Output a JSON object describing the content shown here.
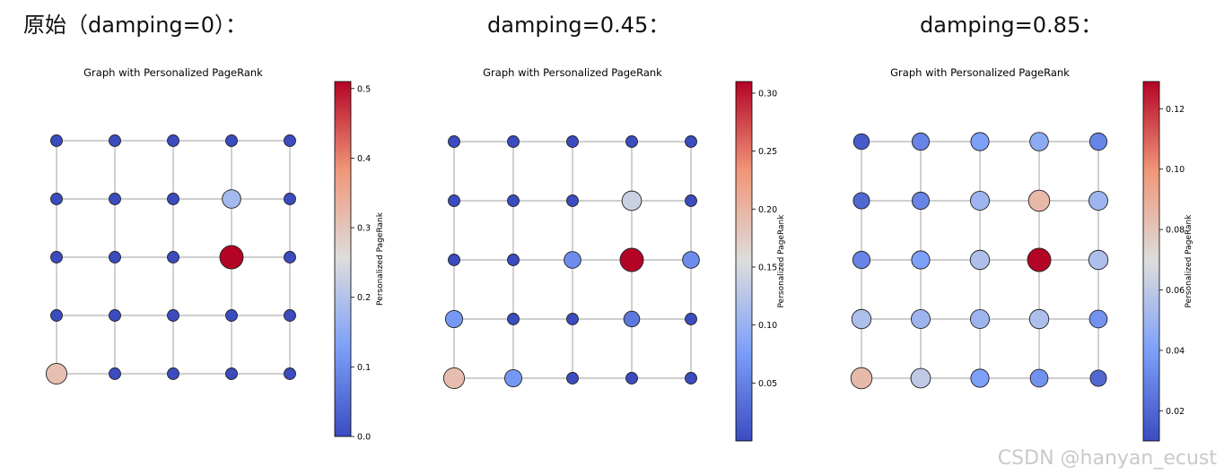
{
  "headings": [
    "原始（damping=0）：",
    "damping=0.45：",
    "damping=0.85："
  ],
  "watermark": "CSDN @hanyan_ecust",
  "chart_data": [
    {
      "type": "network-grid",
      "title": "Graph with Personalized PageRank",
      "colorbar_label": "Personalized PageRank",
      "colormap": "coolwarm",
      "grid": {
        "rows": 5,
        "cols": 5
      },
      "cbar_range": [
        0.0,
        0.51
      ],
      "cbar_ticks": [
        0.0,
        0.1,
        0.2,
        0.3,
        0.4,
        0.5
      ],
      "cbar_tick_labels": [
        "0.0",
        "0.1",
        "0.2",
        "0.3",
        "0.4",
        "0.5"
      ],
      "values": [
        [
          0.0,
          0.0,
          0.0,
          0.0,
          0.0
        ],
        [
          0.0,
          0.0,
          0.0,
          0.18,
          0.0
        ],
        [
          0.0,
          0.0,
          0.0,
          0.51,
          0.0
        ],
        [
          0.0,
          0.0,
          0.0,
          0.0,
          0.0
        ],
        [
          0.31,
          0.0,
          0.0,
          0.0,
          0.0
        ]
      ]
    },
    {
      "type": "network-grid",
      "title": "Graph with Personalized PageRank",
      "colorbar_label": "Personalized PageRank",
      "colormap": "coolwarm",
      "grid": {
        "rows": 5,
        "cols": 5
      },
      "cbar_range": [
        0.0,
        0.31
      ],
      "cbar_ticks": [
        0.05,
        0.1,
        0.15,
        0.2,
        0.25,
        0.3
      ],
      "cbar_tick_labels": [
        "0.05",
        "0.10",
        "0.15",
        "0.20",
        "0.25",
        "0.30"
      ],
      "values": [
        [
          0.0,
          0.0,
          0.0,
          0.0,
          0.0
        ],
        [
          0.0,
          0.0,
          0.0,
          0.14,
          0.0
        ],
        [
          0.0,
          0.0,
          0.06,
          0.31,
          0.06
        ],
        [
          0.07,
          0.0,
          0.0,
          0.04,
          0.0
        ],
        [
          0.19,
          0.07,
          0.0,
          0.0,
          0.0
        ]
      ]
    },
    {
      "type": "network-grid",
      "title": "Graph with Personalized PageRank",
      "colorbar_label": "Personalized PageRank",
      "colormap": "coolwarm",
      "grid": {
        "rows": 5,
        "cols": 5
      },
      "cbar_range": [
        0.01,
        0.129
      ],
      "cbar_ticks": [
        0.02,
        0.04,
        0.06,
        0.08,
        0.1,
        0.12
      ],
      "cbar_tick_labels": [
        "0.02",
        "0.04",
        "0.06",
        "0.08",
        "0.10",
        "0.12"
      ],
      "values": [
        [
          0.015,
          0.03,
          0.04,
          0.045,
          0.03
        ],
        [
          0.02,
          0.03,
          0.05,
          0.085,
          0.05
        ],
        [
          0.03,
          0.04,
          0.055,
          0.129,
          0.055
        ],
        [
          0.055,
          0.05,
          0.05,
          0.055,
          0.035
        ],
        [
          0.085,
          0.06,
          0.04,
          0.035,
          0.02
        ]
      ]
    }
  ]
}
